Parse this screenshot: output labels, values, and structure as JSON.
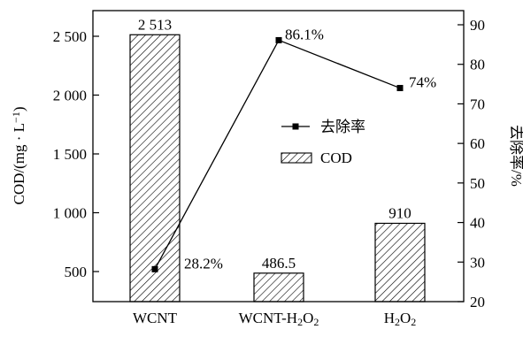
{
  "chart_data": {
    "type": "bar",
    "categories": [
      "WCNT",
      "WCNT-H2O2",
      "H2O2"
    ],
    "category_labels": [
      {
        "parts": [
          {
            "t": "WCNT"
          }
        ]
      },
      {
        "parts": [
          {
            "t": "WCNT-H"
          },
          {
            "t": "2",
            "sub": true
          },
          {
            "t": "O"
          },
          {
            "t": "2",
            "sub": true
          }
        ]
      },
      {
        "parts": [
          {
            "t": "H"
          },
          {
            "t": "2",
            "sub": true
          },
          {
            "t": "O"
          },
          {
            "t": "2",
            "sub": true
          }
        ]
      }
    ],
    "series": [
      {
        "name": "COD",
        "type": "bar",
        "axis": "left",
        "values": [
          2513,
          486.5,
          910
        ],
        "labels": [
          "2 513",
          "486.5",
          "910"
        ],
        "pattern": "hatched"
      },
      {
        "name": "去除率",
        "type": "line",
        "axis": "right",
        "values": [
          28.2,
          86.1,
          74
        ],
        "labels": [
          "28.2%",
          "86.1%",
          "74%"
        ],
        "marker": "square"
      }
    ],
    "left_axis": {
      "ylim": [
        500,
        2700
      ],
      "ticks": [
        500,
        1000,
        1500,
        2000,
        2500
      ],
      "tick_labels": [
        "500",
        "1 000",
        "1 500",
        "2 000",
        "2 500"
      ]
    },
    "left_title": {
      "parts": [
        {
          "t": "COD/(mg · L"
        },
        {
          "t": "−1",
          "sup": true
        },
        {
          "t": ")"
        }
      ]
    },
    "right_axis": {
      "label": "去除率/%",
      "ylim": [
        20,
        95
      ],
      "ticks": [
        20,
        30,
        40,
        50,
        60,
        70,
        80,
        90
      ],
      "tick_labels": [
        "20",
        "30",
        "40",
        "50",
        "60",
        "70",
        "80",
        "90"
      ]
    },
    "legend": {
      "position": "center-right",
      "entries": [
        {
          "label": "去除率",
          "kind": "line-marker"
        },
        {
          "label": "COD",
          "kind": "hatched-box"
        }
      ]
    },
    "grid": false
  }
}
